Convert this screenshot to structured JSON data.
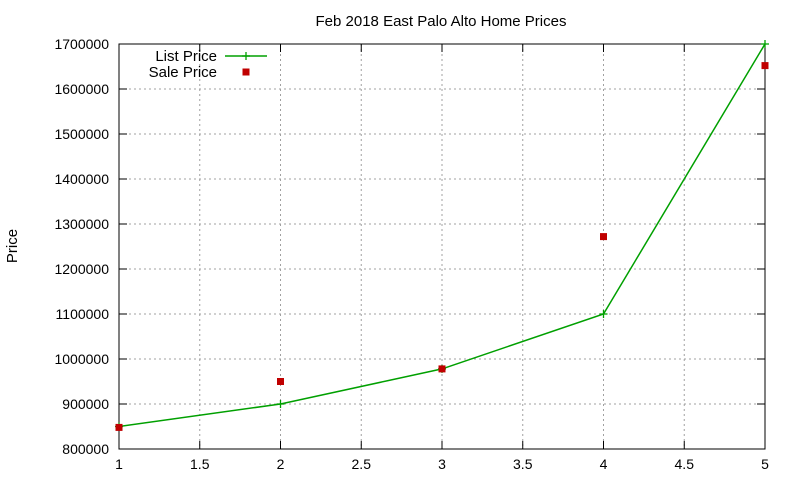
{
  "chart_data": {
    "type": "line",
    "title": "Feb 2018 East Palo Alto Home Prices",
    "xlabel": "",
    "ylabel": "Price",
    "xlim": [
      1,
      5
    ],
    "ylim": [
      800000,
      1700000
    ],
    "xticks": [
      1,
      1.5,
      2,
      2.5,
      3,
      3.5,
      4,
      4.5,
      5
    ],
    "xtick_labels": [
      "1",
      "1.5",
      "2",
      "2.5",
      "3",
      "3.5",
      "4",
      "4.5",
      "5"
    ],
    "yticks": [
      800000,
      900000,
      1000000,
      1100000,
      1200000,
      1300000,
      1400000,
      1500000,
      1600000,
      1700000
    ],
    "ytick_labels": [
      "800000",
      "900000",
      "1000000",
      "1100000",
      "1200000",
      "1300000",
      "1400000",
      "1500000",
      "1600000",
      "1700000"
    ],
    "grid": true,
    "legend_position": "top-left",
    "series": [
      {
        "name": "List Price",
        "style": "linespoints",
        "marker": "plus",
        "color": "#00a000",
        "x": [
          1,
          2,
          3,
          4,
          5
        ],
        "y": [
          850000,
          900000,
          978000,
          1100000,
          1700000
        ]
      },
      {
        "name": "Sale Price",
        "style": "points",
        "marker": "square",
        "color": "#c00000",
        "x": [
          1,
          2,
          3,
          4,
          5
        ],
        "y": [
          848000,
          950000,
          978000,
          1272000,
          1652000
        ]
      }
    ]
  }
}
